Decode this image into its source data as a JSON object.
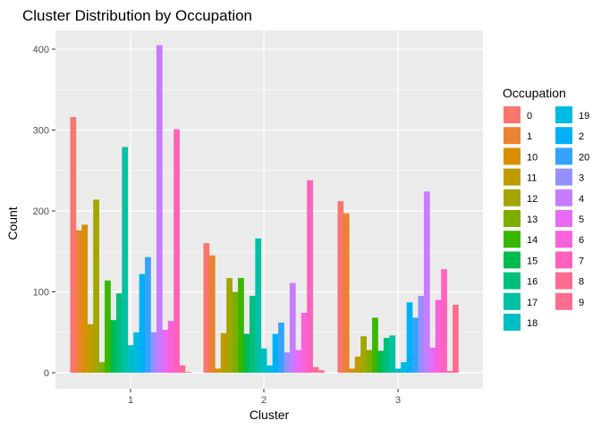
{
  "chart_data": {
    "type": "bar",
    "title": "Cluster Distribution by Occupation",
    "xlabel": "Cluster",
    "ylabel": "Count",
    "categories": [
      "1",
      "2",
      "3"
    ],
    "ylim": [
      0,
      440
    ],
    "yticks": [
      0,
      100,
      200,
      300,
      400
    ],
    "grid": true,
    "legend_position": "right",
    "legend_title": "Occupation",
    "series": [
      {
        "name": "0",
        "color": "#F8766D",
        "values": [
          316,
          160,
          212
        ]
      },
      {
        "name": "1",
        "color": "#EA8331",
        "values": [
          176,
          145,
          197
        ]
      },
      {
        "name": "10",
        "color": "#D89000",
        "values": [
          183,
          5,
          5
        ]
      },
      {
        "name": "11",
        "color": "#C09B00",
        "values": [
          60,
          49,
          20
        ]
      },
      {
        "name": "12",
        "color": "#A3A500",
        "values": [
          214,
          117,
          45
        ]
      },
      {
        "name": "13",
        "color": "#7CAE00",
        "values": [
          13,
          100,
          28
        ]
      },
      {
        "name": "14",
        "color": "#39B600",
        "values": [
          114,
          117,
          68
        ]
      },
      {
        "name": "15",
        "color": "#00BB4E",
        "values": [
          65,
          48,
          27
        ]
      },
      {
        "name": "16",
        "color": "#00BF7D",
        "values": [
          98,
          95,
          43
        ]
      },
      {
        "name": "17",
        "color": "#00C1A3",
        "values": [
          279,
          166,
          46
        ]
      },
      {
        "name": "18",
        "color": "#00BFC4",
        "values": [
          34,
          30,
          5
        ]
      },
      {
        "name": "19",
        "color": "#00BAE0",
        "values": [
          50,
          9,
          13
        ]
      },
      {
        "name": "2",
        "color": "#00B0F6",
        "values": [
          122,
          48,
          87
        ]
      },
      {
        "name": "20",
        "color": "#35A2FF",
        "values": [
          143,
          62,
          68
        ]
      },
      {
        "name": "3",
        "color": "#9590FF",
        "values": [
          50,
          25,
          95
        ]
      },
      {
        "name": "4",
        "color": "#C77CFF",
        "values": [
          405,
          111,
          224
        ]
      },
      {
        "name": "5",
        "color": "#E76BF3",
        "values": [
          53,
          28,
          31
        ]
      },
      {
        "name": "6",
        "color": "#FA62DB",
        "values": [
          64,
          74,
          90
        ]
      },
      {
        "name": "7",
        "color": "#FF62BC",
        "values": [
          301,
          238,
          128
        ]
      },
      {
        "name": "8",
        "color": "#FF6C91",
        "values": [
          9,
          7,
          2
        ]
      },
      {
        "name": "9",
        "color": "#FF6C91",
        "values": [
          1,
          3,
          84
        ]
      }
    ]
  }
}
